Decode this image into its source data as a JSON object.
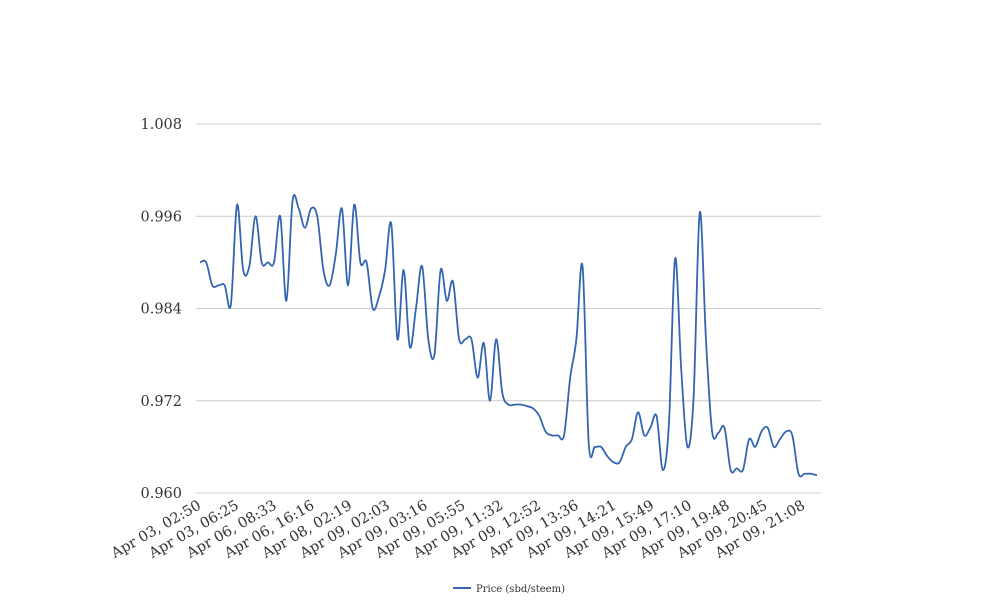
{
  "chart_data": {
    "type": "line",
    "title": "",
    "xlabel": "",
    "ylabel": "",
    "ylim": [
      0.96,
      1.008
    ],
    "y_ticks": [
      "0.960",
      "0.972",
      "0.984",
      "0.996",
      "1.008"
    ],
    "grid": {
      "horizontal": true,
      "vertical": false
    },
    "legend_position": "bottom-center",
    "series_color": "#3465b0",
    "x_tick_labels": [
      "Apr 03, 02:50",
      "Apr 03, 06:25",
      "Apr 06, 08:33",
      "Apr 06, 16:16",
      "Apr 08, 02:19",
      "Apr 09, 02:03",
      "Apr 09, 03:16",
      "Apr 09, 05:55",
      "Apr 09, 11:32",
      "Apr 09, 12:52",
      "Apr 09, 13:36",
      "Apr 09, 14:21",
      "Apr 09, 15:49",
      "Apr 09, 17:10",
      "Apr 09, 19:48",
      "Apr 09, 20:45",
      "Apr 09, 21:08"
    ],
    "series": [
      {
        "name": "Price (sbd/steem)",
        "values": [
          0.99,
          0.99,
          0.987,
          0.987,
          0.987,
          0.9845,
          0.9975,
          0.989,
          0.9895,
          0.996,
          0.99,
          0.99,
          0.99,
          0.996,
          0.985,
          0.998,
          0.997,
          0.9945,
          0.997,
          0.996,
          0.989,
          0.987,
          0.991,
          0.997,
          0.987,
          0.9975,
          0.99,
          0.99,
          0.984,
          0.9855,
          0.989,
          0.995,
          0.98,
          0.989,
          0.979,
          0.984,
          0.9895,
          0.98,
          0.978,
          0.989,
          0.985,
          0.9875,
          0.98,
          0.98,
          0.98,
          0.975,
          0.9795,
          0.972,
          0.98,
          0.973,
          0.9715,
          0.9715,
          0.9715,
          0.9713,
          0.971,
          0.97,
          0.968,
          0.9675,
          0.9675,
          0.9675,
          0.975,
          0.98,
          0.9895,
          0.9665,
          0.966,
          0.966,
          0.9648,
          0.964,
          0.964,
          0.966,
          0.967,
          0.9705,
          0.9675,
          0.9685,
          0.97,
          0.963,
          0.969,
          0.9905,
          0.976,
          0.966,
          0.9725,
          0.9965,
          0.98,
          0.968,
          0.9678,
          0.9685,
          0.963,
          0.9632,
          0.963,
          0.967,
          0.966,
          0.968,
          0.9685,
          0.966,
          0.967,
          0.968,
          0.9675,
          0.9625,
          0.9625,
          0.9625,
          0.9623
        ]
      }
    ]
  }
}
